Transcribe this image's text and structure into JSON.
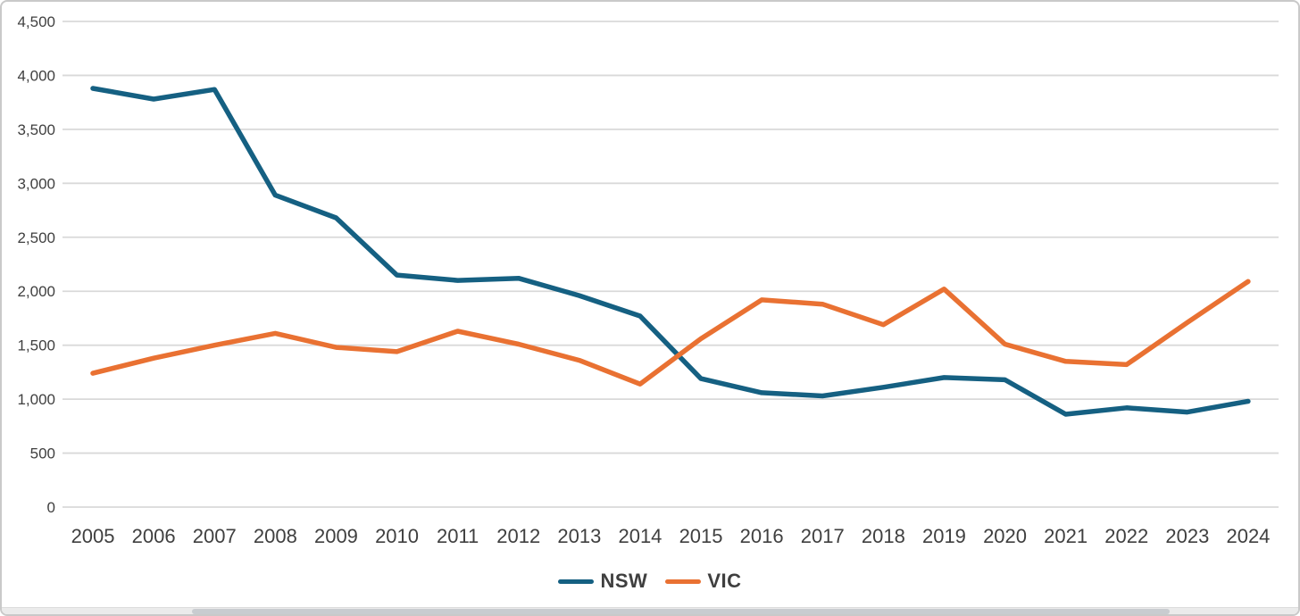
{
  "chart_data": {
    "type": "line",
    "title": "",
    "categories": [
      "2005",
      "2006",
      "2007",
      "2008",
      "2009",
      "2010",
      "2011",
      "2012",
      "2013",
      "2014",
      "2015",
      "2016",
      "2017",
      "2018",
      "2019",
      "2020",
      "2021",
      "2022",
      "2023",
      "2024"
    ],
    "series": [
      {
        "name": "NSW",
        "color": "#156082",
        "values": [
          3880,
          3780,
          3870,
          2890,
          2680,
          2150,
          2100,
          2120,
          1960,
          1770,
          1190,
          1060,
          1030,
          1110,
          1200,
          1180,
          860,
          920,
          880,
          980
        ]
      },
      {
        "name": "VIC",
        "color": "#E97132",
        "values": [
          1240,
          1380,
          1500,
          1610,
          1480,
          1440,
          1630,
          1510,
          1360,
          1140,
          1560,
          1920,
          1880,
          1690,
          2020,
          1510,
          1350,
          1320,
          1710,
          2090
        ]
      }
    ],
    "ylim": [
      0,
      4500
    ],
    "y_ticks": [
      {
        "value": 0,
        "label": "0"
      },
      {
        "value": 500,
        "label": "500"
      },
      {
        "value": 1000,
        "label": "1,000"
      },
      {
        "value": 1500,
        "label": "1,500"
      },
      {
        "value": 2000,
        "label": "2,000"
      },
      {
        "value": 2500,
        "label": "2,500"
      },
      {
        "value": 3000,
        "label": "3,000"
      },
      {
        "value": 3500,
        "label": "3,500"
      },
      {
        "value": 4000,
        "label": "4,000"
      },
      {
        "value": 4500,
        "label": "4,500"
      }
    ],
    "grid": true,
    "legend_position": "bottom",
    "xlabel": "",
    "ylabel": ""
  }
}
